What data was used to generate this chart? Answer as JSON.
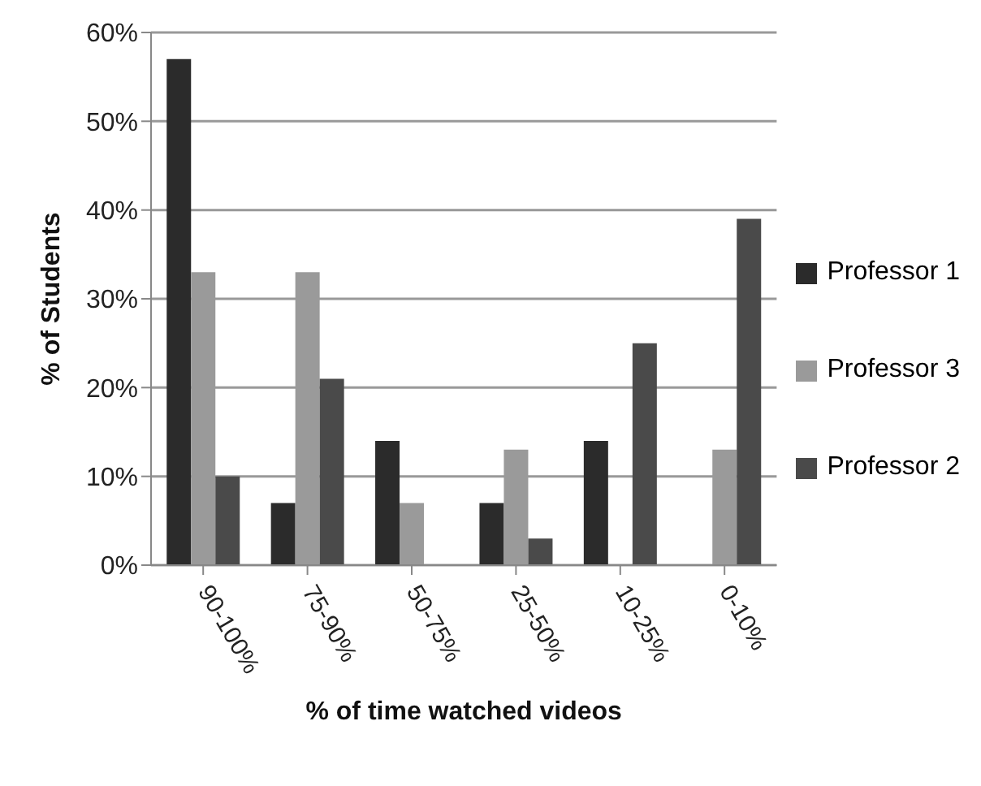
{
  "chart_data": {
    "type": "bar",
    "xlabel": "% of time watched videos",
    "ylabel": "% of Students",
    "categories": [
      "90-100%",
      "75-90%",
      "50-75%",
      "25-50%",
      "10-25%",
      "0-10%"
    ],
    "series": [
      {
        "name": "Professor 1",
        "color": "#2b2b2b",
        "values": [
          57,
          7,
          14,
          7,
          14,
          0
        ]
      },
      {
        "name": "Professor 3",
        "color": "#9a9a9a",
        "values": [
          33,
          33,
          7,
          13,
          0,
          13
        ]
      },
      {
        "name": "Professor 2",
        "color": "#4a4a4a",
        "values": [
          10,
          21,
          0,
          3,
          25,
          39
        ]
      }
    ],
    "ylim": [
      0,
      60
    ],
    "yticks": [
      {
        "value": 0,
        "label": "0%"
      },
      {
        "value": 10,
        "label": "10%"
      },
      {
        "value": 20,
        "label": "20%"
      },
      {
        "value": 30,
        "label": "30%"
      },
      {
        "value": 40,
        "label": "40%"
      },
      {
        "value": 50,
        "label": "50%"
      },
      {
        "value": 60,
        "label": "60%"
      }
    ],
    "grid": "y",
    "legend": "right"
  }
}
